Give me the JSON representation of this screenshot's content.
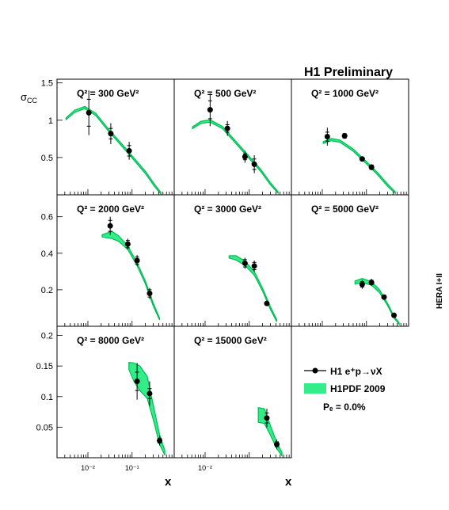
{
  "header": {
    "text": "H1 Preliminary"
  },
  "side_label": "HERA I+II",
  "y_axis_label": {
    "sigma": "σ",
    "sub": "CC"
  },
  "x_axis_label": "x",
  "legend": {
    "data_label": "H1 e⁺p→νX",
    "band_label": "H1PDF 2009",
    "pol_label": "Pₑ = 0.0%"
  },
  "colors": {
    "band": "#33ee88",
    "curve": "#00bb55",
    "data": "#000000",
    "frame": "#000000"
  },
  "chart_data": {
    "type": "scatter",
    "x_scale": "log",
    "xlim": [
      0.002,
      0.9
    ],
    "x_ticks": [
      {
        "value": 0.01,
        "label": "10⁻²"
      },
      {
        "value": 0.1,
        "label": "10⁻¹"
      }
    ],
    "panels": [
      {
        "q2_label": "Q² = 300 GeV²",
        "ylim": [
          0,
          1.55
        ],
        "yticks": [
          {
            "v": 0.5,
            "label": "0.5"
          },
          {
            "v": 1,
            "label": "1"
          },
          {
            "v": 1.5,
            "label": "1.5"
          }
        ],
        "points": [
          {
            "x": 0.0105,
            "y": 1.1,
            "stat": 0.18,
            "tot": 0.3
          },
          {
            "x": 0.033,
            "y": 0.82,
            "stat": 0.07,
            "tot": 0.14
          },
          {
            "x": 0.086,
            "y": 0.59,
            "stat": 0.07,
            "tot": 0.12
          }
        ],
        "band": [
          {
            "x": 0.0032,
            "y": 1.02,
            "hw": 0.012
          },
          {
            "x": 0.005,
            "y": 1.12,
            "hw": 0.015
          },
          {
            "x": 0.0085,
            "y": 1.17,
            "hw": 0.015
          },
          {
            "x": 0.015,
            "y": 1.08,
            "hw": 0.015
          },
          {
            "x": 0.03,
            "y": 0.86,
            "hw": 0.015
          },
          {
            "x": 0.06,
            "y": 0.66,
            "hw": 0.015
          },
          {
            "x": 0.11,
            "y": 0.48,
            "hw": 0.015
          },
          {
            "x": 0.2,
            "y": 0.3,
            "hw": 0.015
          },
          {
            "x": 0.32,
            "y": 0.13,
            "hw": 0.015
          },
          {
            "x": 0.45,
            "y": 0.02,
            "hw": 0.01
          }
        ]
      },
      {
        "q2_label": "Q² = 500 GeV²",
        "ylim": [
          0,
          1.55
        ],
        "yticks": [],
        "points": [
          {
            "x": 0.013,
            "y": 1.14,
            "stat": 0.12,
            "tot": 0.22
          },
          {
            "x": 0.032,
            "y": 0.89,
            "stat": 0.05,
            "tot": 0.1
          },
          {
            "x": 0.08,
            "y": 0.51,
            "stat": 0.04,
            "tot": 0.08
          },
          {
            "x": 0.13,
            "y": 0.41,
            "stat": 0.07,
            "tot": 0.12
          }
        ],
        "band": [
          {
            "x": 0.0052,
            "y": 0.9,
            "hw": 0.012
          },
          {
            "x": 0.008,
            "y": 0.97,
            "hw": 0.015
          },
          {
            "x": 0.013,
            "y": 0.99,
            "hw": 0.015
          },
          {
            "x": 0.025,
            "y": 0.9,
            "hw": 0.015
          },
          {
            "x": 0.05,
            "y": 0.7,
            "hw": 0.015
          },
          {
            "x": 0.1,
            "y": 0.5,
            "hw": 0.015
          },
          {
            "x": 0.18,
            "y": 0.33,
            "hw": 0.015
          },
          {
            "x": 0.3,
            "y": 0.15,
            "hw": 0.015
          },
          {
            "x": 0.45,
            "y": 0.03,
            "hw": 0.01
          }
        ]
      },
      {
        "q2_label": "Q² = 1000 GeV²",
        "ylim": [
          0,
          1.55
        ],
        "yticks": [],
        "points": [
          {
            "x": 0.013,
            "y": 0.78,
            "stat": 0.06,
            "tot": 0.12
          },
          {
            "x": 0.032,
            "y": 0.79,
            "stat": 0.03,
            "tot": 0.04
          },
          {
            "x": 0.08,
            "y": 0.48,
            "stat": 0.02,
            "tot": 0.03
          },
          {
            "x": 0.13,
            "y": 0.37,
            "stat": 0.03,
            "tot": 0.04
          }
        ],
        "band": [
          {
            "x": 0.0105,
            "y": 0.7,
            "hw": 0.012
          },
          {
            "x": 0.016,
            "y": 0.74,
            "hw": 0.015
          },
          {
            "x": 0.025,
            "y": 0.72,
            "hw": 0.015
          },
          {
            "x": 0.05,
            "y": 0.6,
            "hw": 0.015
          },
          {
            "x": 0.1,
            "y": 0.43,
            "hw": 0.015
          },
          {
            "x": 0.18,
            "y": 0.28,
            "hw": 0.015
          },
          {
            "x": 0.3,
            "y": 0.13,
            "hw": 0.015
          },
          {
            "x": 0.45,
            "y": 0.03,
            "hw": 0.01
          }
        ]
      },
      {
        "q2_label": "Q² = 2000 GeV²",
        "ylim": [
          0,
          0.72
        ],
        "yticks": [
          {
            "v": 0.2,
            "label": "0.2"
          },
          {
            "v": 0.4,
            "label": "0.4"
          },
          {
            "v": 0.6,
            "label": "0.6"
          }
        ],
        "points": [
          {
            "x": 0.032,
            "y": 0.55,
            "stat": 0.03,
            "tot": 0.05
          },
          {
            "x": 0.08,
            "y": 0.45,
            "stat": 0.02,
            "tot": 0.03
          },
          {
            "x": 0.13,
            "y": 0.36,
            "stat": 0.02,
            "tot": 0.03
          },
          {
            "x": 0.25,
            "y": 0.18,
            "stat": 0.02,
            "tot": 0.03
          }
        ],
        "band": [
          {
            "x": 0.021,
            "y": 0.495,
            "hw": 0.006
          },
          {
            "x": 0.035,
            "y": 0.5,
            "hw": 0.02
          },
          {
            "x": 0.05,
            "y": 0.48,
            "hw": 0.015
          },
          {
            "x": 0.08,
            "y": 0.43,
            "hw": 0.01
          },
          {
            "x": 0.13,
            "y": 0.34,
            "hw": 0.008
          },
          {
            "x": 0.2,
            "y": 0.24,
            "hw": 0.008
          },
          {
            "x": 0.3,
            "y": 0.12,
            "hw": 0.008
          },
          {
            "x": 0.42,
            "y": 0.04,
            "hw": 0.005
          }
        ]
      },
      {
        "q2_label": "Q² = 3000 GeV²",
        "ylim": [
          0,
          0.72
        ],
        "yticks": [],
        "points": [
          {
            "x": 0.08,
            "y": 0.345,
            "stat": 0.02,
            "tot": 0.03
          },
          {
            "x": 0.13,
            "y": 0.33,
            "stat": 0.02,
            "tot": 0.03
          },
          {
            "x": 0.25,
            "y": 0.125,
            "stat": 0.008,
            "tot": 0.012
          }
        ],
        "band": [
          {
            "x": 0.035,
            "y": 0.38,
            "hw": 0.006
          },
          {
            "x": 0.05,
            "y": 0.375,
            "hw": 0.012
          },
          {
            "x": 0.08,
            "y": 0.345,
            "hw": 0.012
          },
          {
            "x": 0.13,
            "y": 0.29,
            "hw": 0.01
          },
          {
            "x": 0.2,
            "y": 0.2,
            "hw": 0.008
          },
          {
            "x": 0.3,
            "y": 0.1,
            "hw": 0.008
          },
          {
            "x": 0.42,
            "y": 0.03,
            "hw": 0.005
          }
        ]
      },
      {
        "q2_label": "Q² = 5000 GeV²",
        "ylim": [
          0,
          0.72
        ],
        "yticks": [],
        "points": [
          {
            "x": 0.08,
            "y": 0.23,
            "stat": 0.015,
            "tot": 0.025
          },
          {
            "x": 0.13,
            "y": 0.24,
            "stat": 0.012,
            "tot": 0.02
          },
          {
            "x": 0.25,
            "y": 0.16,
            "stat": 0.008,
            "tot": 0.012
          },
          {
            "x": 0.42,
            "y": 0.06,
            "stat": 0.006,
            "tot": 0.01
          }
        ],
        "band": [
          {
            "x": 0.055,
            "y": 0.24,
            "hw": 0.008
          },
          {
            "x": 0.08,
            "y": 0.25,
            "hw": 0.012
          },
          {
            "x": 0.13,
            "y": 0.235,
            "hw": 0.01
          },
          {
            "x": 0.2,
            "y": 0.19,
            "hw": 0.008
          },
          {
            "x": 0.3,
            "y": 0.12,
            "hw": 0.006
          },
          {
            "x": 0.42,
            "y": 0.05,
            "hw": 0.005
          },
          {
            "x": 0.55,
            "y": 0.015,
            "hw": 0.004
          }
        ]
      },
      {
        "q2_label": "Q² = 8000 GeV²",
        "ylim": [
          0,
          0.215
        ],
        "yticks": [
          {
            "v": 0.05,
            "label": "0.05"
          },
          {
            "v": 0.1,
            "label": "0.1"
          },
          {
            "v": 0.15,
            "label": "0.15"
          },
          {
            "v": 0.2,
            "label": "0.2"
          }
        ],
        "points": [
          {
            "x": 0.13,
            "y": 0.125,
            "stat": 0.015,
            "tot": 0.03
          },
          {
            "x": 0.25,
            "y": 0.105,
            "stat": 0.008,
            "tot": 0.02
          },
          {
            "x": 0.42,
            "y": 0.028,
            "stat": 0.004,
            "tot": 0.008
          }
        ],
        "band": [
          {
            "x": 0.085,
            "y": 0.15,
            "hw": 0.006
          },
          {
            "x": 0.11,
            "y": 0.14,
            "hw": 0.015
          },
          {
            "x": 0.15,
            "y": 0.13,
            "hw": 0.02
          },
          {
            "x": 0.22,
            "y": 0.115,
            "hw": 0.018
          },
          {
            "x": 0.3,
            "y": 0.075,
            "hw": 0.012
          },
          {
            "x": 0.42,
            "y": 0.03,
            "hw": 0.008
          },
          {
            "x": 0.55,
            "y": 0.008,
            "hw": 0.004
          }
        ]
      },
      {
        "q2_label": "Q² = 15000 GeV²",
        "ylim": [
          0,
          0.215
        ],
        "yticks": [],
        "points": [
          {
            "x": 0.25,
            "y": 0.065,
            "stat": 0.008,
            "tot": 0.015
          },
          {
            "x": 0.42,
            "y": 0.022,
            "stat": 0.004,
            "tot": 0.008
          }
        ],
        "band": [
          {
            "x": 0.16,
            "y": 0.07,
            "hw": 0.012
          },
          {
            "x": 0.22,
            "y": 0.068,
            "hw": 0.012
          },
          {
            "x": 0.3,
            "y": 0.045,
            "hw": 0.008
          },
          {
            "x": 0.42,
            "y": 0.02,
            "hw": 0.005
          },
          {
            "x": 0.55,
            "y": 0.006,
            "hw": 0.003
          }
        ]
      }
    ]
  }
}
